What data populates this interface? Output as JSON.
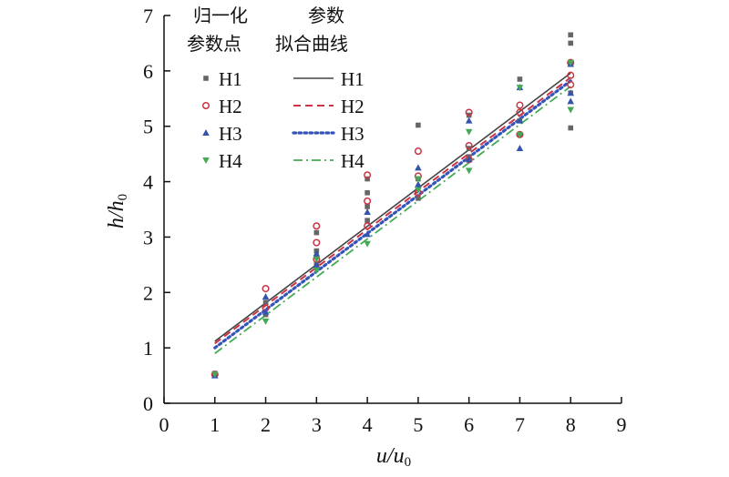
{
  "chart_data": {
    "type": "scatter",
    "xlabel": {
      "main": "u/u",
      "sub": "0"
    },
    "ylabel": {
      "main": "h/h",
      "sub": "0"
    },
    "xlim": [
      0,
      9
    ],
    "ylim": [
      0,
      7
    ],
    "xticks": [
      "0",
      "1",
      "2",
      "3",
      "4",
      "5",
      "6",
      "7",
      "8",
      "9"
    ],
    "yticks": [
      "0",
      "1",
      "2",
      "3",
      "4",
      "5",
      "6",
      "7"
    ],
    "grid": false,
    "legend": {
      "placement": "top-left",
      "points_heading": [
        "归一化",
        "参数点"
      ],
      "lines_heading": [
        "参数",
        "拟合曲线"
      ]
    },
    "point_series": [
      {
        "name": "H1",
        "marker": "square",
        "color": "#666666",
        "points": [
          [
            1,
            0.52
          ],
          [
            1,
            0.54
          ],
          [
            2,
            1.82
          ],
          [
            2,
            1.6
          ],
          [
            3,
            3.08
          ],
          [
            3,
            2.75
          ],
          [
            3,
            2.5
          ],
          [
            4,
            4.05
          ],
          [
            4,
            3.8
          ],
          [
            4,
            3.55
          ],
          [
            4,
            3.3
          ],
          [
            5,
            5.02
          ],
          [
            5,
            4.05
          ],
          [
            5,
            3.7
          ],
          [
            6,
            5.2
          ],
          [
            6,
            4.6
          ],
          [
            6,
            4.45
          ],
          [
            7,
            5.85
          ],
          [
            7,
            5.1
          ],
          [
            7,
            4.85
          ],
          [
            8,
            6.65
          ],
          [
            8,
            6.5
          ],
          [
            8,
            6.12
          ],
          [
            8,
            5.6
          ],
          [
            8,
            4.97
          ]
        ]
      },
      {
        "name": "H2",
        "marker": "circle-open",
        "color": "#cc3344",
        "points": [
          [
            1,
            0.52
          ],
          [
            2,
            2.07
          ],
          [
            2,
            1.72
          ],
          [
            3,
            3.2
          ],
          [
            3,
            2.9
          ],
          [
            3,
            2.6
          ],
          [
            4,
            4.12
          ],
          [
            4,
            3.65
          ],
          [
            4,
            3.2
          ],
          [
            5,
            4.55
          ],
          [
            5,
            4.1
          ],
          [
            5,
            3.8
          ],
          [
            6,
            5.25
          ],
          [
            6,
            4.65
          ],
          [
            6,
            4.4
          ],
          [
            7,
            5.38
          ],
          [
            7,
            5.25
          ],
          [
            7,
            4.85
          ],
          [
            8,
            6.15
          ],
          [
            8,
            5.92
          ],
          [
            8,
            5.75
          ]
        ]
      },
      {
        "name": "H3",
        "marker": "triangle-up",
        "color": "#3355aa",
        "points": [
          [
            1,
            0.5
          ],
          [
            2,
            1.92
          ],
          [
            2,
            1.65
          ],
          [
            3,
            2.7
          ],
          [
            3,
            2.5
          ],
          [
            4,
            3.45
          ],
          [
            4,
            3.05
          ],
          [
            5,
            4.25
          ],
          [
            5,
            3.95
          ],
          [
            6,
            5.1
          ],
          [
            6,
            4.4
          ],
          [
            7,
            5.7
          ],
          [
            7,
            5.1
          ],
          [
            7,
            4.6
          ],
          [
            8,
            6.12
          ],
          [
            8,
            5.6
          ],
          [
            8,
            5.45
          ]
        ]
      },
      {
        "name": "H4",
        "marker": "triangle-down",
        "color": "#44aa55",
        "points": [
          [
            1,
            0.52
          ],
          [
            2,
            1.48
          ],
          [
            3,
            2.6
          ],
          [
            3,
            2.4
          ],
          [
            4,
            2.88
          ],
          [
            5,
            4.05
          ],
          [
            5,
            3.85
          ],
          [
            6,
            4.9
          ],
          [
            6,
            4.2
          ],
          [
            7,
            5.7
          ],
          [
            7,
            4.85
          ],
          [
            8,
            6.15
          ],
          [
            8,
            5.3
          ]
        ]
      }
    ],
    "line_series": [
      {
        "name": "H1",
        "style": "solid",
        "color": "#444444",
        "x": [
          1,
          8
        ],
        "y": [
          1.12,
          5.96
        ]
      },
      {
        "name": "H2",
        "style": "dashed",
        "color": "#cc3344",
        "x": [
          1,
          8
        ],
        "y": [
          1.08,
          5.88
        ]
      },
      {
        "name": "H3",
        "style": "dotted",
        "color": "#3355bb",
        "x": [
          1,
          8
        ],
        "y": [
          1.0,
          5.82
        ]
      },
      {
        "name": "H4",
        "style": "dashdot",
        "color": "#44aa55",
        "x": [
          1,
          8
        ],
        "y": [
          0.9,
          5.72
        ]
      }
    ]
  }
}
